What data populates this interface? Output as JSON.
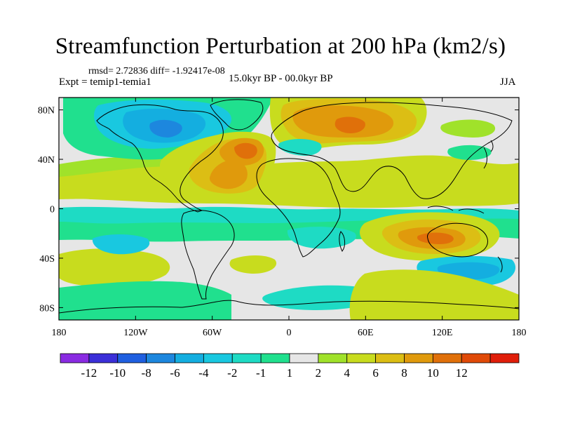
{
  "title": "Streamfunction Perturbation at 200 hPa (km2/s)",
  "stats_line": "rmsd= 2.72836 diff= -1.92417e-08",
  "experiment_line": "Expt = temip1-temia1",
  "timespan_line": "15.0kyr BP - 00.0kyr BP",
  "season": "JJA",
  "map": {
    "projection": "cylindrical equidistant",
    "lon_range": [
      -180,
      180
    ],
    "lat_range": [
      -90,
      90
    ],
    "lat_ticks": [
      {
        "value": 80,
        "label": "80N"
      },
      {
        "value": 40,
        "label": "40N"
      },
      {
        "value": 0,
        "label": "0"
      },
      {
        "value": -40,
        "label": "40S"
      },
      {
        "value": -80,
        "label": "80S"
      }
    ],
    "lon_ticks": [
      {
        "value": -180,
        "label": "180"
      },
      {
        "value": -120,
        "label": "120W"
      },
      {
        "value": -60,
        "label": "60W"
      },
      {
        "value": 0,
        "label": "0"
      },
      {
        "value": 60,
        "label": "60E"
      },
      {
        "value": 120,
        "label": "120E"
      },
      {
        "value": 180,
        "label": "180"
      }
    ],
    "features": [
      {
        "name": "north-atlantic-high",
        "lon": -35,
        "lat": 44,
        "sign": "positive",
        "peak": 10
      },
      {
        "name": "tropical-atlantic-high",
        "lon": -40,
        "lat": 24,
        "sign": "positive",
        "peak": 8
      },
      {
        "name": "eurasia-high",
        "lon": 48,
        "lat": 62,
        "sign": "positive",
        "peak": 8
      },
      {
        "name": "australia-high",
        "lon": 125,
        "lat": -26,
        "sign": "positive",
        "peak": 10
      },
      {
        "name": "canada-low",
        "lon": -100,
        "lat": 60,
        "sign": "negative",
        "peak": -6
      },
      {
        "name": "south-indian-ocean-low",
        "lon": 20,
        "lat": -42,
        "sign": "negative",
        "peak": -3
      },
      {
        "name": "south-pacific-low",
        "lon": 140,
        "lat": -50,
        "sign": "negative",
        "peak": -4
      },
      {
        "name": "south-atlantic-low",
        "lon": -150,
        "lat": -30,
        "sign": "negative",
        "peak": -4
      }
    ]
  },
  "colorbar": {
    "colors": [
      "#8a2be2",
      "#3b2fd8",
      "#1f5fe0",
      "#1d87de",
      "#14aee0",
      "#19c8e0",
      "#1edbc4",
      "#20e08e",
      "#e6e6e6",
      "#a0e22a",
      "#c8dc1e",
      "#dcbe14",
      "#e09a0c",
      "#e0700a",
      "#e04a08",
      "#e01e0a"
    ],
    "labels": [
      "-12",
      "-10",
      "-8",
      "-6",
      "-4",
      "-2",
      "-1",
      "1",
      "2",
      "4",
      "6",
      "8",
      "10",
      "12"
    ]
  }
}
